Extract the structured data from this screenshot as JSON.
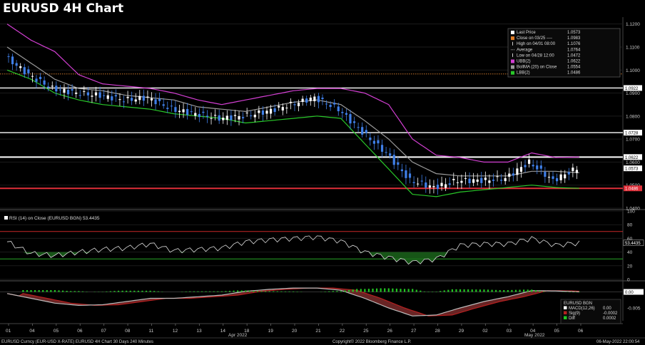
{
  "title": "EURUSD 4H Chart",
  "colors": {
    "background": "#000000",
    "up_candle": "#ffffff",
    "down_candle": "#3f7fe8",
    "ubb": "#d23fd2",
    "lbb": "#29c829",
    "bollma": "#9a9a9a",
    "close_line": "#c8762d",
    "resistance": "#ffffff",
    "support": "#e0303a",
    "macd_hist": "#21c521",
    "sig_line": "#b52020"
  },
  "legend": [
    {
      "label": "Last Price",
      "value": "1.0573",
      "marker": "square",
      "color": "#ffffff"
    },
    {
      "label": "Close on 03/25 ----",
      "value": "1.0983",
      "marker": "square",
      "color": "#e07b24"
    },
    {
      "label": "High on 04/01 08:00",
      "value": "1.1076",
      "marker": "line",
      "color": "#ffffff"
    },
    {
      "label": "Average",
      "value": "1.0764",
      "marker": "dash",
      "color": "#aaaaaa"
    },
    {
      "label": "Low on 04/28 12:00",
      "value": "1.0472",
      "marker": "line",
      "color": "#ffffff"
    },
    {
      "label": "UBB(2)",
      "value": "1.0622",
      "marker": "square",
      "color": "#d23fd2"
    },
    {
      "label": "BollMA (20)  on Close",
      "value": "1.0554",
      "marker": "square",
      "color": "#9a9a9a"
    },
    {
      "label": "LBB(2)",
      "value": "1.0486",
      "marker": "square",
      "color": "#29c829"
    }
  ],
  "price_axis": {
    "ticks": [
      "1.1200",
      "1.1100",
      "1.1000",
      "1.0900",
      "1.0800",
      "1.0700",
      "1.0600",
      "1.0500",
      "1.0400"
    ],
    "tags": [
      {
        "text": "1.0922",
        "style": "white"
      },
      {
        "text": "1.0728",
        "style": "white"
      },
      {
        "text": "1.0622",
        "style": "white"
      },
      {
        "text": "1.0573",
        "style": "white"
      },
      {
        "text": "1.0486",
        "style": "red"
      }
    ]
  },
  "rsi_panel": {
    "label": "RSI (14)  on Close (EURUSD BGN)  53.4435",
    "ticks": [
      "100",
      "80",
      "60",
      "40",
      "20",
      "0"
    ],
    "tag": "53.4435"
  },
  "macd_panel": {
    "legend_title": "EURUSD BGN",
    "legend": [
      {
        "label": "MACD(12,26)",
        "value": "0.00",
        "color": "#ffffff"
      },
      {
        "label": "Sig(9)",
        "value": "-0.0002",
        "color": "#b52020"
      },
      {
        "label": "Diff",
        "value": "0.0002",
        "color": "#21c521"
      }
    ],
    "ticks": [
      "0.00",
      "-0.005"
    ],
    "tag": "0.00"
  },
  "x_axis": {
    "days": [
      "01",
      "04",
      "05",
      "06",
      "07",
      "08",
      "11",
      "12",
      "13",
      "14",
      "18",
      "19",
      "20",
      "21",
      "22",
      "25",
      "26",
      "27",
      "28",
      "29",
      "02",
      "03",
      "04",
      "05",
      "06"
    ],
    "months": [
      "Apr 2022",
      "May 2022"
    ]
  },
  "footer": {
    "left": "EURUSD Curncy (EUR-USD X-RATE) EURUSD 4H Chart 30 Days 240 Minutes",
    "center": "Copyright© 2022 Bloomberg Finance L.P.",
    "right": "06-May-2022 22:00:54"
  },
  "chart_data": {
    "type": "line",
    "x": [
      "01",
      "04",
      "05",
      "06",
      "07",
      "08",
      "11",
      "12",
      "13",
      "14",
      "18",
      "19",
      "20",
      "21",
      "22",
      "25",
      "26",
      "27",
      "28",
      "29",
      "02",
      "03",
      "04",
      "05",
      "06"
    ],
    "series": [
      {
        "name": "Last Price",
        "values": [
          1.106,
          1.098,
          1.092,
          1.09,
          1.089,
          1.087,
          1.088,
          1.083,
          1.081,
          1.079,
          1.08,
          1.082,
          1.085,
          1.088,
          1.083,
          1.073,
          1.064,
          1.052,
          1.049,
          1.052,
          1.052,
          1.053,
          1.06,
          1.052,
          1.0573
        ]
      },
      {
        "name": "UBB(2)",
        "values": [
          1.12,
          1.113,
          1.108,
          1.098,
          1.094,
          1.093,
          1.092,
          1.09,
          1.087,
          1.085,
          1.087,
          1.089,
          1.091,
          1.092,
          1.092,
          1.09,
          1.085,
          1.07,
          1.063,
          1.062,
          1.06,
          1.06,
          1.064,
          1.062,
          1.0622
        ]
      },
      {
        "name": "BollMA (20)  on Close",
        "values": [
          1.11,
          1.103,
          1.096,
          1.092,
          1.091,
          1.089,
          1.088,
          1.087,
          1.084,
          1.083,
          1.082,
          1.084,
          1.086,
          1.087,
          1.085,
          1.078,
          1.07,
          1.06,
          1.055,
          1.054,
          1.054,
          1.054,
          1.056,
          1.056,
          1.0554
        ]
      },
      {
        "name": "LBB(2)",
        "values": [
          1.1,
          1.096,
          1.09,
          1.087,
          1.085,
          1.084,
          1.083,
          1.081,
          1.08,
          1.079,
          1.077,
          1.078,
          1.079,
          1.08,
          1.079,
          1.068,
          1.057,
          1.046,
          1.045,
          1.047,
          1.048,
          1.049,
          1.05,
          1.049,
          1.0486
        ]
      }
    ],
    "levels": [
      {
        "label": "Close on 03/25",
        "value": 1.0983
      },
      {
        "value": 1.0922
      },
      {
        "value": 1.0728
      },
      {
        "value": 1.0622
      },
      {
        "value": 1.0486
      }
    ],
    "rsi": {
      "values": [
        55,
        38,
        35,
        40,
        44,
        46,
        52,
        42,
        44,
        46,
        55,
        58,
        60,
        62,
        56,
        40,
        32,
        25,
        30,
        50,
        52,
        52,
        60,
        50,
        53.4435
      ],
      "levels": [
        70,
        30
      ]
    },
    "macd": {
      "values": [
        -0.0005,
        -0.002,
        -0.0035,
        -0.0042,
        -0.004,
        -0.003,
        -0.002,
        -0.002,
        -0.0015,
        -0.001,
        0.0002,
        0.0008,
        0.0012,
        0.0012,
        0.0005,
        -0.002,
        -0.005,
        -0.0075,
        -0.0072,
        -0.005,
        -0.003,
        -0.0015,
        0.0004,
        0.0003,
        0.0
      ]
    },
    "ylim": [
      1.04,
      1.123
    ]
  }
}
